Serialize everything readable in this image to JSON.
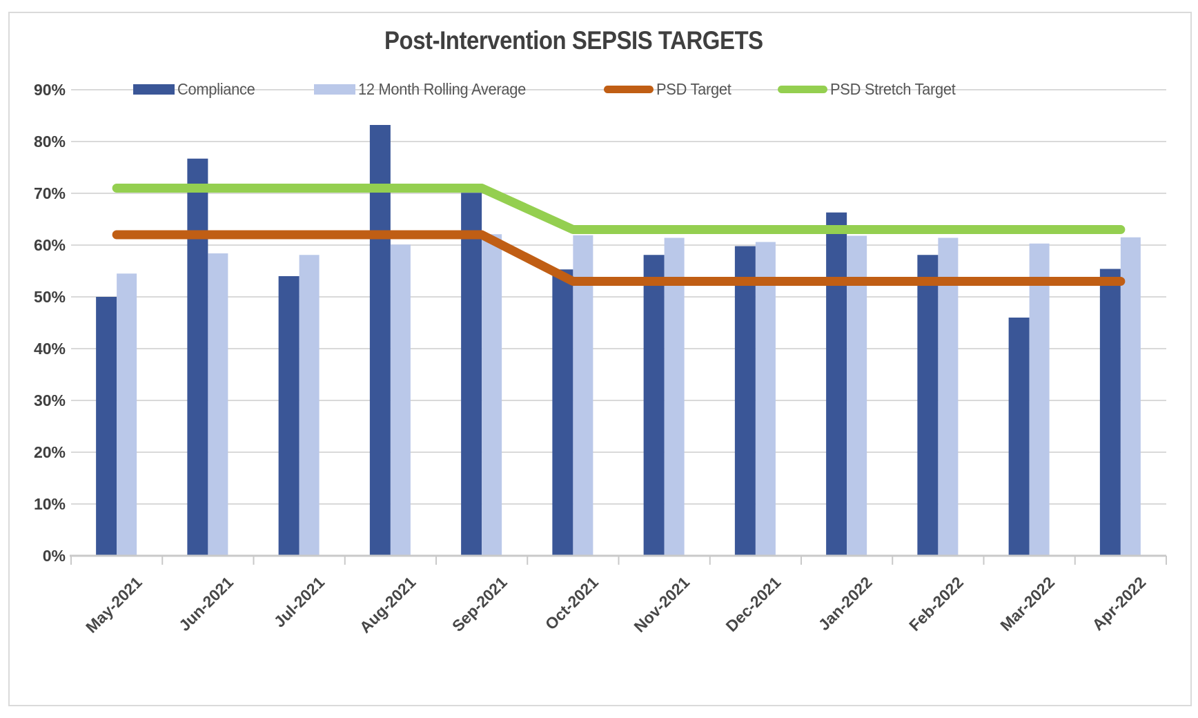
{
  "title": "Post-Intervention SEPSIS TARGETS",
  "colors": {
    "background": "#FFFFFF",
    "chart_border": "#DADADA",
    "gridline": "#D9D9D9",
    "axis_line": "#C9C9C9",
    "title_text": "#3F3F3F",
    "axis_label_text": "#3F3F3F",
    "legend_text": "#555555"
  },
  "chart_data": {
    "type": "bar",
    "subtype": "combo-bar-line",
    "title": "Post-Intervention SEPSIS TARGETS",
    "xlabel": "",
    "ylabel": "",
    "ylim": [
      0,
      90
    ],
    "grid": true,
    "legend_position": "top",
    "y_ticks": [
      "0%",
      "10%",
      "20%",
      "30%",
      "40%",
      "50%",
      "60%",
      "70%",
      "80%",
      "90%"
    ],
    "categories": [
      "May-2021",
      "Jun-2021",
      "Jul-2021",
      "Aug-2021",
      "Sep-2021",
      "Oct-2021",
      "Nov-2021",
      "Dec-2021",
      "Jan-2022",
      "Feb-2022",
      "Mar-2022",
      "Apr-2022"
    ],
    "series": [
      {
        "name": "Compliance",
        "type": "bar",
        "color": "#3A5697",
        "values": [
          50.0,
          76.7,
          54.0,
          83.2,
          70.1,
          55.3,
          58.1,
          59.8,
          66.3,
          58.1,
          46.0,
          55.4
        ]
      },
      {
        "name": "12 Month Rolling Average",
        "type": "bar",
        "color": "#BAC8E9",
        "values": [
          54.5,
          58.4,
          58.1,
          60.1,
          62.1,
          61.9,
          61.4,
          60.6,
          61.8,
          61.4,
          60.3,
          61.5
        ]
      },
      {
        "name": "PSD Target",
        "type": "line",
        "color": "#C05E14",
        "values": [
          62,
          62,
          62,
          62,
          62,
          53,
          53,
          53,
          53,
          53,
          53,
          53
        ]
      },
      {
        "name": "PSD Stretch Target",
        "type": "line",
        "color": "#94CF50",
        "values": [
          71,
          71,
          71,
          71,
          71,
          63,
          63,
          63,
          63,
          63,
          63,
          63
        ]
      }
    ]
  }
}
